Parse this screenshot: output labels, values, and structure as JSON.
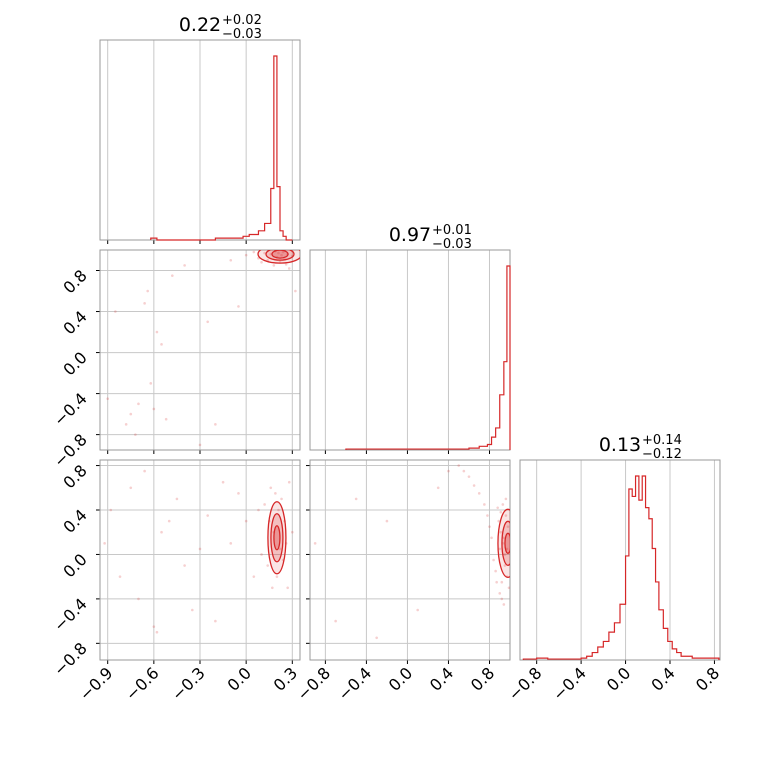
{
  "figure": {
    "panels": {
      "p11": {
        "title": {
          "value": "0.22",
          "plus": "+0.02",
          "minus": "−0.03"
        }
      },
      "p22": {
        "title": {
          "value": "0.97",
          "plus": "+0.01",
          "minus": "−0.03"
        }
      },
      "p33": {
        "title": {
          "value": "0.13",
          "plus": "+0.14",
          "minus": "−0.12"
        }
      }
    }
  },
  "colors": {
    "series": "#d62728",
    "grid": "#c8c8c8",
    "frame": "#9a9a9a"
  },
  "chart_data": {
    "type": "corner",
    "series_color": "#d62728",
    "grid": true,
    "parameters": [
      {
        "range": [
          -0.95,
          0.35
        ],
        "ticks": [
          -0.9,
          -0.6,
          -0.3,
          0.0,
          0.3
        ],
        "tick_labels": [
          "−0.9",
          "−0.6",
          "−0.3",
          "0.0",
          "0.3"
        ]
      },
      {
        "range": [
          -0.95,
          1.0
        ],
        "ticks": [
          -0.8,
          -0.4,
          0.0,
          0.4,
          0.8
        ],
        "tick_labels": [
          "−0.8",
          "−0.4",
          "0.0",
          "0.4",
          "0.8"
        ]
      },
      {
        "range": [
          -0.95,
          0.85
        ],
        "ticks": [
          -0.8,
          -0.4,
          0.0,
          0.4,
          0.8
        ],
        "tick_labels": [
          "−0.8",
          "−0.4",
          "0.0",
          "0.4",
          "0.8"
        ]
      }
    ],
    "histograms": [
      {
        "param": 0,
        "bin_edges": [
          -0.62,
          -0.58,
          -0.2,
          -0.12,
          -0.06,
          -0.02,
          0.02,
          0.08,
          0.12,
          0.16,
          0.18,
          0.2,
          0.22,
          0.24,
          0.26,
          0.3
        ],
        "counts": [
          0.01,
          0,
          0.01,
          0.01,
          0.01,
          0.02,
          0.03,
          0.05,
          0.09,
          0.28,
          1.0,
          0.29,
          0.05,
          0.02,
          0
        ]
      },
      {
        "param": 1,
        "bin_edges": [
          -0.6,
          -0.2,
          0.2,
          0.6,
          0.7,
          0.78,
          0.82,
          0.86,
          0.9,
          0.94,
          0.97,
          1.0
        ],
        "counts": [
          0.005,
          0.005,
          0.005,
          0.01,
          0.02,
          0.03,
          0.07,
          0.12,
          0.3,
          0.48,
          1.0
        ]
      },
      {
        "param": 2,
        "bin_edges": [
          -0.92,
          -0.8,
          -0.7,
          -0.5,
          -0.4,
          -0.35,
          -0.3,
          -0.25,
          -0.2,
          -0.15,
          -0.1,
          -0.05,
          0.0,
          0.03,
          0.06,
          0.09,
          0.12,
          0.15,
          0.18,
          0.21,
          0.24,
          0.27,
          0.3,
          0.34,
          0.38,
          0.42,
          0.46,
          0.5,
          0.6,
          0.7,
          0.84
        ],
        "counts": [
          0.005,
          0.01,
          0.005,
          0.005,
          0.01,
          0.02,
          0.04,
          0.07,
          0.1,
          0.15,
          0.2,
          0.3,
          0.56,
          0.92,
          0.88,
          0.99,
          0.86,
          0.99,
          0.82,
          0.76,
          0.6,
          0.42,
          0.27,
          0.17,
          0.1,
          0.06,
          0.04,
          0.02,
          0.01,
          0.01
        ]
      }
    ],
    "joint_2d": [
      {
        "x_param": 0,
        "y_param": 1,
        "center": [
          0.22,
          0.96
        ],
        "scatter": [
          [
            -0.9,
            -0.45
          ],
          [
            -0.85,
            0.4
          ],
          [
            -0.78,
            -0.7
          ],
          [
            -0.75,
            -0.6
          ],
          [
            -0.72,
            -0.8
          ],
          [
            -0.7,
            -0.5
          ],
          [
            -0.66,
            0.48
          ],
          [
            -0.64,
            0.6
          ],
          [
            -0.62,
            -0.3
          ],
          [
            -0.6,
            -0.55
          ],
          [
            -0.58,
            0.2
          ],
          [
            -0.55,
            0.08
          ],
          [
            -0.52,
            -0.65
          ],
          [
            -0.48,
            0.75
          ],
          [
            -0.4,
            0.85
          ],
          [
            -0.3,
            -0.9
          ],
          [
            -0.25,
            0.3
          ],
          [
            -0.2,
            -0.7
          ],
          [
            -0.1,
            0.9
          ],
          [
            -0.05,
            0.45
          ],
          [
            0.0,
            0.95
          ],
          [
            0.05,
            0.98
          ],
          [
            0.08,
            0.92
          ],
          [
            0.1,
            0.88
          ],
          [
            0.12,
            0.97
          ],
          [
            0.14,
            0.9
          ],
          [
            0.16,
            0.96
          ],
          [
            0.18,
            0.85
          ],
          [
            0.19,
            0.99
          ],
          [
            0.2,
            0.93
          ],
          [
            0.21,
            0.97
          ],
          [
            0.22,
            0.89
          ],
          [
            0.23,
            0.95
          ],
          [
            0.24,
            0.98
          ],
          [
            0.25,
            0.91
          ],
          [
            0.26,
            0.86
          ],
          [
            0.27,
            0.96
          ],
          [
            0.28,
            0.82
          ],
          [
            0.3,
            0.94
          ],
          [
            0.32,
            0.6
          ]
        ]
      },
      {
        "x_param": 0,
        "y_param": 2,
        "center": [
          0.2,
          0.15
        ],
        "scatter": [
          [
            -0.92,
            0.1
          ],
          [
            -0.88,
            0.4
          ],
          [
            -0.82,
            -0.2
          ],
          [
            -0.75,
            0.6
          ],
          [
            -0.7,
            -0.4
          ],
          [
            -0.66,
            0.75
          ],
          [
            -0.6,
            -0.65
          ],
          [
            -0.58,
            -0.7
          ],
          [
            -0.55,
            0.2
          ],
          [
            -0.5,
            0.3
          ],
          [
            -0.45,
            0.5
          ],
          [
            -0.4,
            -0.1
          ],
          [
            -0.35,
            -0.5
          ],
          [
            -0.3,
            0.05
          ],
          [
            -0.25,
            0.35
          ],
          [
            -0.2,
            -0.6
          ],
          [
            -0.15,
            0.65
          ],
          [
            -0.1,
            0.1
          ],
          [
            -0.05,
            0.55
          ],
          [
            0.0,
            0.3
          ],
          [
            0.05,
            -0.2
          ],
          [
            0.08,
            0.4
          ],
          [
            0.1,
            0.0
          ],
          [
            0.12,
            0.45
          ],
          [
            0.14,
            -0.1
          ],
          [
            0.15,
            0.3
          ],
          [
            0.16,
            0.6
          ],
          [
            0.17,
            -0.3
          ],
          [
            0.18,
            0.2
          ],
          [
            0.19,
            0.55
          ],
          [
            0.2,
            -0.2
          ],
          [
            0.21,
            0.4
          ],
          [
            0.22,
            0.05
          ],
          [
            0.23,
            0.5
          ],
          [
            0.24,
            -0.05
          ],
          [
            0.25,
            0.3
          ],
          [
            0.26,
            0.1
          ],
          [
            0.27,
            -0.3
          ],
          [
            0.28,
            0.65
          ],
          [
            0.3,
            0.2
          ]
        ]
      },
      {
        "x_param": 1,
        "y_param": 2,
        "center": [
          0.98,
          0.1
        ],
        "scatter": [
          [
            -0.9,
            0.1
          ],
          [
            -0.7,
            -0.6
          ],
          [
            -0.5,
            0.5
          ],
          [
            -0.3,
            -0.75
          ],
          [
            -0.2,
            0.3
          ],
          [
            0.1,
            -0.5
          ],
          [
            0.3,
            0.6
          ],
          [
            0.4,
            0.75
          ],
          [
            0.5,
            0.8
          ],
          [
            0.55,
            0.75
          ],
          [
            0.6,
            0.7
          ],
          [
            0.65,
            0.62
          ],
          [
            0.7,
            0.55
          ],
          [
            0.75,
            0.45
          ],
          [
            0.78,
            0.35
          ],
          [
            0.8,
            0.25
          ],
          [
            0.82,
            0.15
          ],
          [
            0.84,
            -0.05
          ],
          [
            0.86,
            -0.15
          ],
          [
            0.87,
            -0.25
          ],
          [
            0.88,
            0.42
          ],
          [
            0.89,
            0.3
          ],
          [
            0.9,
            -0.35
          ],
          [
            0.91,
            0.2
          ],
          [
            0.92,
            -0.4
          ],
          [
            0.93,
            0.1
          ],
          [
            0.94,
            -0.45
          ],
          [
            0.95,
            0.0
          ],
          [
            0.96,
            0.5
          ],
          [
            0.97,
            -0.2
          ],
          [
            0.98,
            0.25
          ],
          [
            0.99,
            -0.3
          ],
          [
            0.97,
            0.05
          ],
          [
            0.96,
            0.35
          ],
          [
            0.95,
            -0.1
          ],
          [
            0.94,
            0.15
          ],
          [
            0.93,
            0.45
          ],
          [
            0.92,
            -0.25
          ],
          [
            0.91,
            0.38
          ],
          [
            0.9,
            0.05
          ]
        ]
      }
    ]
  }
}
